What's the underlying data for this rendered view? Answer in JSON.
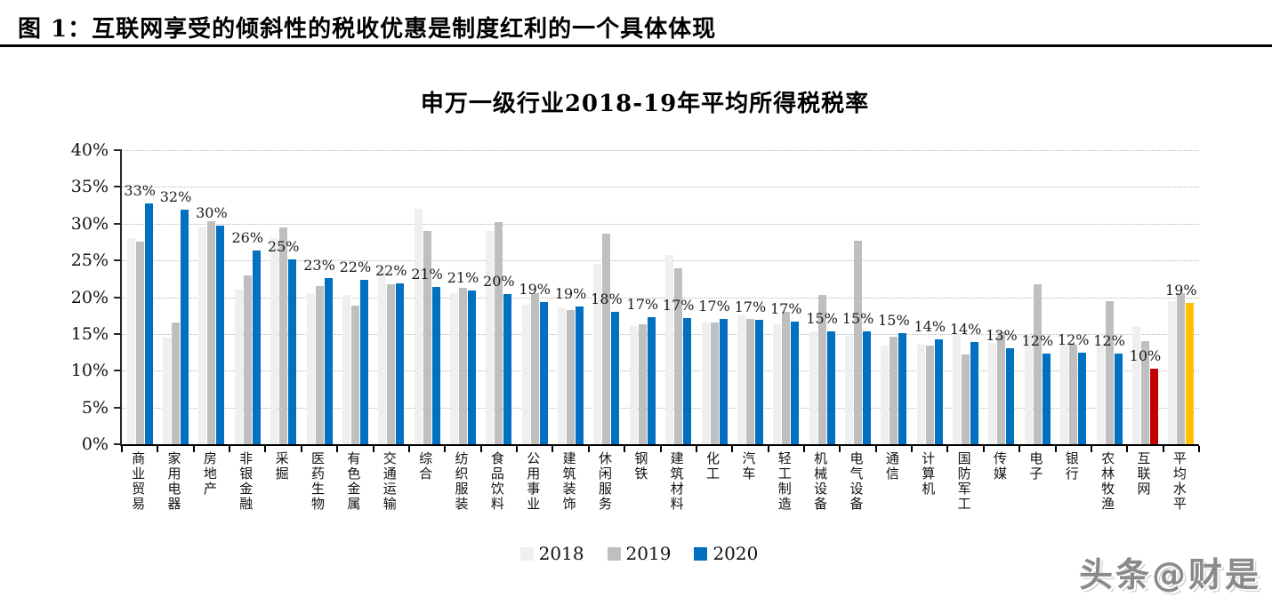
{
  "header": {
    "caption": "图 1：互联网享受的倾斜性的税收优惠是制度红利的一个具体体现"
  },
  "watermark": "头条@财是",
  "chart_data": {
    "type": "bar",
    "title": "申万一级行业2018-19年平均所得税税率",
    "categories": [
      "商业贸易",
      "家用电器",
      "房地产",
      "非银金融",
      "采掘",
      "医药生物",
      "有色金属",
      "交通运输",
      "综合",
      "纺织服装",
      "食品饮料",
      "公用事业",
      "建筑装饰",
      "休闲服务",
      "钢铁",
      "建筑材料",
      "化工",
      "汽车",
      "轻工制造",
      "机械设备",
      "电气设备",
      "通信",
      "计算机",
      "国防军工",
      "传媒",
      "电子",
      "银行",
      "农林牧渔",
      "互联网",
      "平均水平"
    ],
    "series": [
      {
        "name": "2018",
        "color": "#efefef",
        "values": [
          28,
          14.5,
          29.5,
          21,
          28,
          20.5,
          20.3,
          24,
          32,
          20.5,
          29,
          19,
          18.6,
          24.5,
          16.1,
          25.8,
          16.5,
          17.7,
          16.3,
          15.3,
          14.7,
          13.4,
          13.5,
          14.8,
          13.8,
          14.8,
          13.7,
          13.6,
          16,
          19.5
        ]
      },
      {
        "name": "2019",
        "color": "#bfbfbf",
        "values": [
          27.5,
          16.5,
          30.3,
          23,
          29.5,
          21.5,
          18.8,
          21.8,
          29,
          21.3,
          30.2,
          20.5,
          18.3,
          28.7,
          16.3,
          23.9,
          16.5,
          17,
          18,
          20.3,
          27.7,
          14.6,
          13.4,
          12.2,
          15.2,
          21.7,
          13.5,
          19.5,
          14,
          20.5
        ]
      },
      {
        "name": "2020",
        "color": "#0070c0",
        "values": [
          32.7,
          31.9,
          29.7,
          26.3,
          25.1,
          22.6,
          22.3,
          21.9,
          21.4,
          20.9,
          20.4,
          19.3,
          18.7,
          18,
          17.3,
          17.2,
          17,
          16.9,
          16.7,
          15.4,
          15.3,
          15.1,
          14.3,
          13.9,
          13,
          12.3,
          12.4,
          12.3,
          10.3,
          19.2
        ]
      }
    ],
    "highlights": [
      {
        "category": "互联网",
        "series": "2020",
        "color": "#c00000"
      },
      {
        "category": "平均水平",
        "series": "2020",
        "color": "#ffc000"
      }
    ],
    "data_label_series": "2020",
    "data_labels": [
      "33%",
      "32%",
      "30%",
      "26%",
      "25%",
      "23%",
      "22%",
      "22%",
      "21%",
      "21%",
      "20%",
      "19%",
      "19%",
      "18%",
      "17%",
      "17%",
      "17%",
      "17%",
      "17%",
      "15%",
      "15%",
      "15%",
      "14%",
      "14%",
      "13%",
      "12%",
      "12%",
      "12%",
      "10%",
      "19%"
    ],
    "ylim": [
      0,
      40
    ],
    "ytick_step": 5,
    "y_tick_labels": [
      "0%",
      "5%",
      "10%",
      "15%",
      "20%",
      "25%",
      "30%",
      "35%",
      "40%"
    ],
    "grid": "horizontal-dotted",
    "legend_position": "bottom-center",
    "axis_color": "#262626",
    "grid_color": "#b5b5b5"
  }
}
